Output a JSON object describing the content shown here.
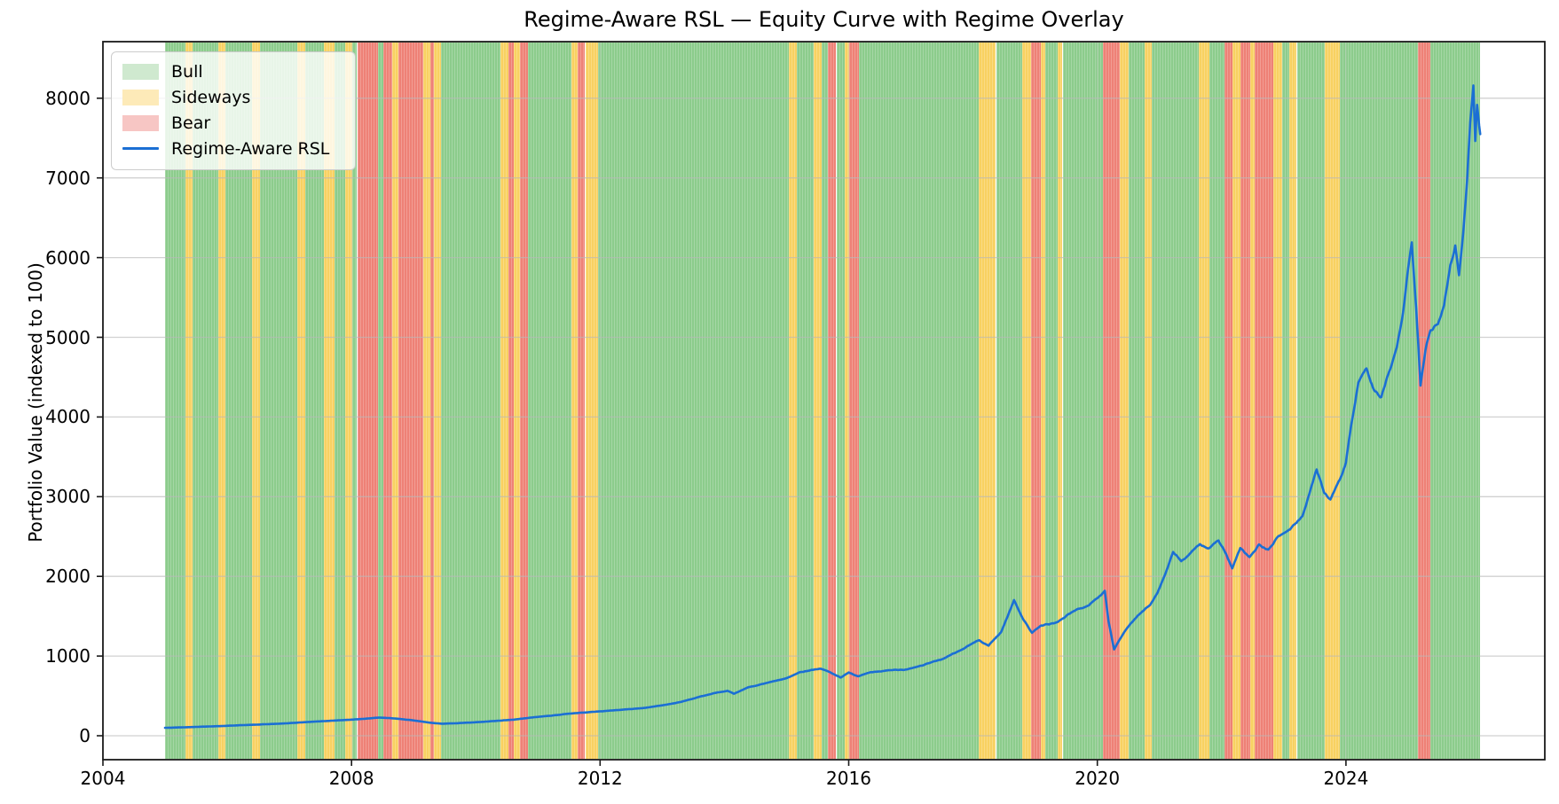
{
  "chart_data": {
    "type": "line",
    "title": "Regime-Aware RSL — Equity Curve with Regime Overlay",
    "xlabel": "",
    "ylabel": "Portfolio Value (indexed to 100)",
    "xlim": [
      2004.0,
      2027.2
    ],
    "ylim": [
      -300,
      8710
    ],
    "xticks": [
      2004,
      2008,
      2012,
      2016,
      2020,
      2024
    ],
    "yticks": [
      0,
      1000,
      2000,
      3000,
      4000,
      5000,
      6000,
      7000,
      8000
    ],
    "grid": true,
    "legend_position": "upper left",
    "legend": [
      {
        "label": "Bull",
        "type": "patch",
        "color": "#cfe9cf"
      },
      {
        "label": "Sideways",
        "type": "patch",
        "color": "#fdeab8"
      },
      {
        "label": "Bear",
        "type": "patch",
        "color": "#f7c6c4"
      },
      {
        "label": "Regime-Aware RSL",
        "type": "line",
        "color": "#1b6fd4"
      }
    ],
    "regime_colors": {
      "bull": "#8ccc8c",
      "sideways": "#f8d161",
      "bear": "#ee8176"
    },
    "regimes": [
      [
        2005.0,
        2005.33,
        "bull"
      ],
      [
        2005.33,
        2005.44,
        "sideways"
      ],
      [
        2005.44,
        2005.86,
        "bull"
      ],
      [
        2005.86,
        2005.97,
        "sideways"
      ],
      [
        2005.97,
        2006.4,
        "bull"
      ],
      [
        2006.4,
        2006.53,
        "sideways"
      ],
      [
        2006.53,
        2007.13,
        "bull"
      ],
      [
        2007.13,
        2007.26,
        "sideways"
      ],
      [
        2007.26,
        2007.56,
        "bull"
      ],
      [
        2007.56,
        2007.73,
        "sideways"
      ],
      [
        2007.73,
        2007.9,
        "bull"
      ],
      [
        2007.9,
        2008.01,
        "sideways"
      ],
      [
        2008.01,
        2008.09,
        "bull"
      ],
      [
        2008.09,
        2008.43,
        "bear"
      ],
      [
        2008.43,
        2008.51,
        "bull"
      ],
      [
        2008.51,
        2008.66,
        "bear"
      ],
      [
        2008.66,
        2008.76,
        "sideways"
      ],
      [
        2008.76,
        2009.16,
        "bear"
      ],
      [
        2009.16,
        2009.27,
        "sideways"
      ],
      [
        2009.27,
        2009.33,
        "bear"
      ],
      [
        2009.33,
        2009.44,
        "sideways"
      ],
      [
        2009.44,
        2010.4,
        "bull"
      ],
      [
        2010.4,
        2010.53,
        "sideways"
      ],
      [
        2010.53,
        2010.61,
        "bear"
      ],
      [
        2010.61,
        2010.71,
        "sideways"
      ],
      [
        2010.71,
        2010.84,
        "bear"
      ],
      [
        2010.84,
        2011.54,
        "bull"
      ],
      [
        2011.54,
        2011.64,
        "sideways"
      ],
      [
        2011.64,
        2011.76,
        "bear"
      ],
      [
        2011.76,
        2011.97,
        "sideways"
      ],
      [
        2011.97,
        2015.04,
        "bull"
      ],
      [
        2015.04,
        2015.16,
        "sideways"
      ],
      [
        2015.16,
        2015.43,
        "bull"
      ],
      [
        2015.43,
        2015.57,
        "sideways"
      ],
      [
        2015.57,
        2015.66,
        "bull"
      ],
      [
        2015.66,
        2015.8,
        "bear"
      ],
      [
        2015.8,
        2015.93,
        "bull"
      ],
      [
        2015.93,
        2016.01,
        "sideways"
      ],
      [
        2016.01,
        2016.17,
        "bear"
      ],
      [
        2016.17,
        2018.09,
        "bull"
      ],
      [
        2018.09,
        2018.37,
        "sideways"
      ],
      [
        2018.37,
        2018.79,
        "bull"
      ],
      [
        2018.79,
        2018.94,
        "sideways"
      ],
      [
        2018.94,
        2019.09,
        "bear"
      ],
      [
        2019.09,
        2019.16,
        "sideways"
      ],
      [
        2019.16,
        2019.36,
        "bull"
      ],
      [
        2019.36,
        2019.44,
        "sideways"
      ],
      [
        2019.44,
        2020.09,
        "bull"
      ],
      [
        2020.09,
        2020.36,
        "bear"
      ],
      [
        2020.36,
        2020.5,
        "sideways"
      ],
      [
        2020.5,
        2020.76,
        "bull"
      ],
      [
        2020.76,
        2020.87,
        "sideways"
      ],
      [
        2020.87,
        2021.63,
        "bull"
      ],
      [
        2021.63,
        2021.8,
        "sideways"
      ],
      [
        2021.8,
        2022.04,
        "bull"
      ],
      [
        2022.04,
        2022.17,
        "bear"
      ],
      [
        2022.17,
        2022.3,
        "sideways"
      ],
      [
        2022.3,
        2022.46,
        "bear"
      ],
      [
        2022.46,
        2022.53,
        "sideways"
      ],
      [
        2022.53,
        2022.83,
        "bear"
      ],
      [
        2022.83,
        2022.97,
        "sideways"
      ],
      [
        2022.97,
        2023.09,
        "bull"
      ],
      [
        2023.09,
        2023.21,
        "sideways"
      ],
      [
        2023.21,
        2023.66,
        "bull"
      ],
      [
        2023.66,
        2023.9,
        "sideways"
      ],
      [
        2023.9,
        2025.16,
        "bull"
      ],
      [
        2025.16,
        2025.36,
        "bear"
      ],
      [
        2025.36,
        2026.16,
        "bull"
      ]
    ],
    "series": [
      {
        "name": "Regime-Aware RSL",
        "color": "#1b6fd4",
        "points": [
          [
            2005.0,
            100
          ],
          [
            2005.3,
            106
          ],
          [
            2005.6,
            115
          ],
          [
            2005.9,
            122
          ],
          [
            2006.2,
            132
          ],
          [
            2006.5,
            140
          ],
          [
            2006.8,
            150
          ],
          [
            2007.1,
            163
          ],
          [
            2007.4,
            178
          ],
          [
            2007.7,
            190
          ],
          [
            2008.0,
            204
          ],
          [
            2008.2,
            212
          ],
          [
            2008.45,
            228
          ],
          [
            2008.65,
            218
          ],
          [
            2008.85,
            205
          ],
          [
            2009.05,
            188
          ],
          [
            2009.25,
            165
          ],
          [
            2009.45,
            152
          ],
          [
            2009.7,
            158
          ],
          [
            2010.0,
            170
          ],
          [
            2010.3,
            184
          ],
          [
            2010.6,
            200
          ],
          [
            2010.9,
            228
          ],
          [
            2011.2,
            252
          ],
          [
            2011.5,
            278
          ],
          [
            2011.8,
            296
          ],
          [
            2012.1,
            312
          ],
          [
            2012.4,
            330
          ],
          [
            2012.7,
            348
          ],
          [
            2013.0,
            382
          ],
          [
            2013.3,
            425
          ],
          [
            2013.6,
            490
          ],
          [
            2013.9,
            545
          ],
          [
            2014.05,
            560
          ],
          [
            2014.15,
            522
          ],
          [
            2014.4,
            610
          ],
          [
            2014.7,
            665
          ],
          [
            2015.0,
            720
          ],
          [
            2015.2,
            790
          ],
          [
            2015.4,
            830
          ],
          [
            2015.55,
            845
          ],
          [
            2015.7,
            798
          ],
          [
            2015.87,
            728
          ],
          [
            2016.0,
            788
          ],
          [
            2016.15,
            742
          ],
          [
            2016.35,
            795
          ],
          [
            2016.6,
            815
          ],
          [
            2016.9,
            832
          ],
          [
            2017.2,
            890
          ],
          [
            2017.5,
            960
          ],
          [
            2017.8,
            1070
          ],
          [
            2018.0,
            1160
          ],
          [
            2018.1,
            1200
          ],
          [
            2018.25,
            1135
          ],
          [
            2018.45,
            1300
          ],
          [
            2018.66,
            1700
          ],
          [
            2018.8,
            1480
          ],
          [
            2018.95,
            1295
          ],
          [
            2019.1,
            1380
          ],
          [
            2019.35,
            1420
          ],
          [
            2019.6,
            1560
          ],
          [
            2019.85,
            1630
          ],
          [
            2020.05,
            1760
          ],
          [
            2020.12,
            1820
          ],
          [
            2020.18,
            1440
          ],
          [
            2020.27,
            1085
          ],
          [
            2020.45,
            1320
          ],
          [
            2020.65,
            1500
          ],
          [
            2020.85,
            1640
          ],
          [
            2020.97,
            1810
          ],
          [
            2021.1,
            2050
          ],
          [
            2021.22,
            2300
          ],
          [
            2021.35,
            2190
          ],
          [
            2021.5,
            2280
          ],
          [
            2021.65,
            2400
          ],
          [
            2021.8,
            2360
          ],
          [
            2021.95,
            2450
          ],
          [
            2022.07,
            2280
          ],
          [
            2022.17,
            2090
          ],
          [
            2022.3,
            2340
          ],
          [
            2022.45,
            2230
          ],
          [
            2022.6,
            2390
          ],
          [
            2022.75,
            2330
          ],
          [
            2022.9,
            2490
          ],
          [
            2023.1,
            2590
          ],
          [
            2023.3,
            2760
          ],
          [
            2023.45,
            3150
          ],
          [
            2023.53,
            3340
          ],
          [
            2023.65,
            3060
          ],
          [
            2023.75,
            2970
          ],
          [
            2023.9,
            3190
          ],
          [
            2024.0,
            3420
          ],
          [
            2024.1,
            3950
          ],
          [
            2024.2,
            4400
          ],
          [
            2024.33,
            4560
          ],
          [
            2024.45,
            4330
          ],
          [
            2024.57,
            4260
          ],
          [
            2024.7,
            4580
          ],
          [
            2024.82,
            4850
          ],
          [
            2024.92,
            5300
          ],
          [
            2025.0,
            5850
          ],
          [
            2025.06,
            6150
          ],
          [
            2025.13,
            5350
          ],
          [
            2025.2,
            4400
          ],
          [
            2025.28,
            4850
          ],
          [
            2025.36,
            5120
          ],
          [
            2025.48,
            5180
          ],
          [
            2025.58,
            5420
          ],
          [
            2025.68,
            5900
          ],
          [
            2025.76,
            6150
          ],
          [
            2025.82,
            5800
          ],
          [
            2025.89,
            6350
          ],
          [
            2025.95,
            7000
          ],
          [
            2026.0,
            7750
          ],
          [
            2026.05,
            8230
          ],
          [
            2026.08,
            7480
          ],
          [
            2026.11,
            7930
          ],
          [
            2026.16,
            7550
          ]
        ]
      }
    ]
  }
}
